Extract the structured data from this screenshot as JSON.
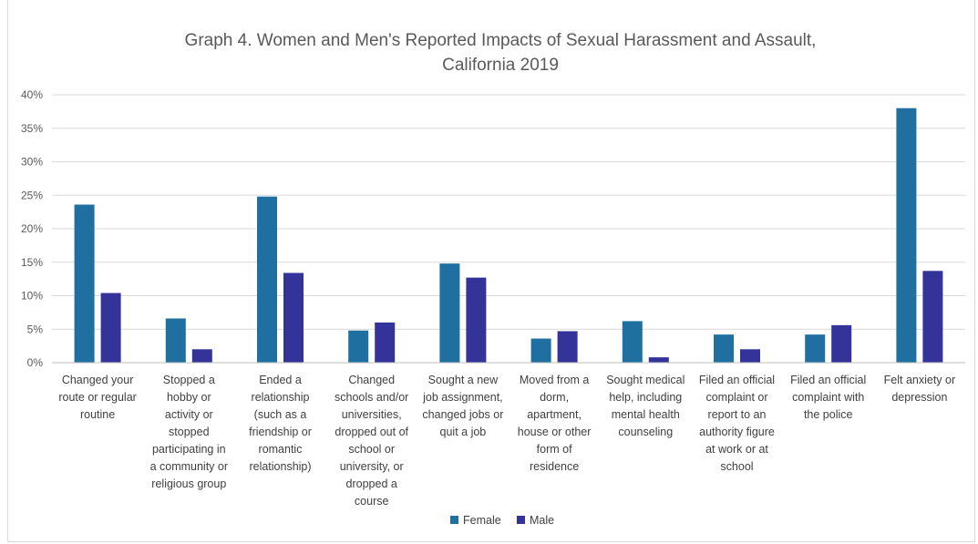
{
  "chart_data": {
    "type": "bar",
    "title": [
      "Graph 4. Women and Men's Reported Impacts of Sexual Harassment and Assault,",
      "California 2019"
    ],
    "xlabel": "",
    "ylabel": "",
    "ylim": [
      0,
      40
    ],
    "yticks": [
      "0%",
      "5%",
      "10%",
      "15%",
      "20%",
      "25%",
      "30%",
      "35%",
      "40%"
    ],
    "grid": true,
    "legend_position": "bottom",
    "categories": [
      [
        "Changed your",
        "route or regular",
        "routine"
      ],
      [
        "Stopped a",
        "hobby or",
        "activity or",
        "stopped",
        "participating in",
        "a community or",
        "religious group"
      ],
      [
        "Ended a",
        "relationship",
        "(such as a",
        "friendship or",
        "romantic",
        "relationship)"
      ],
      [
        "Changed",
        "schools and/or",
        "universities,",
        "dropped out of",
        "school or",
        "university, or",
        "dropped a",
        "course"
      ],
      [
        "Sought a new",
        "job assignment,",
        "changed jobs or",
        "quit a job"
      ],
      [
        "Moved from a",
        "dorm,",
        "apartment,",
        "house or other",
        "form of",
        "residence"
      ],
      [
        "Sought medical",
        "help, including",
        "mental health",
        "counseling"
      ],
      [
        "Filed an official",
        "complaint or",
        "report to an",
        "authority figure",
        "at work or at",
        "school"
      ],
      [
        "Filed an official",
        "complaint with",
        "the police"
      ],
      [
        "Felt anxiety or",
        "depression"
      ]
    ],
    "series": [
      {
        "name": "Female",
        "color": "#1f6fa0",
        "values": [
          23.6,
          6.6,
          24.8,
          4.8,
          14.8,
          3.6,
          6.2,
          4.2,
          4.2,
          38.0
        ]
      },
      {
        "name": "Male",
        "color": "#33339a",
        "values": [
          10.4,
          2.0,
          13.4,
          6.0,
          12.7,
          4.7,
          0.8,
          2.0,
          5.6,
          13.7
        ]
      }
    ],
    "colors": {
      "gridline": "#d9d9d9",
      "axis": "#bfbfbf",
      "text": "#595959"
    }
  }
}
